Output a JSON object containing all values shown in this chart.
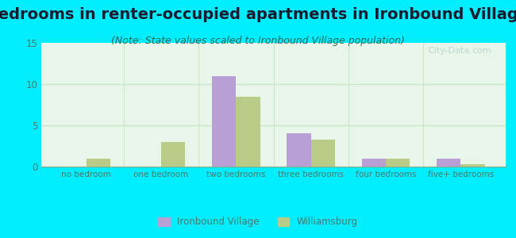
{
  "title": "Bedrooms in renter-occupied apartments in Ironbound Village",
  "subtitle": "(Note: State values scaled to Ironbound Village population)",
  "categories": [
    "no bedroom",
    "one bedroom",
    "two bedrooms",
    "three bedrooms",
    "four bedrooms",
    "five+ bedrooms"
  ],
  "ironbound_values": [
    0,
    0,
    11,
    4,
    1,
    1
  ],
  "williamsburg_values": [
    1,
    3,
    8.5,
    3.3,
    1,
    0.25
  ],
  "ironbound_color": "#b89fd4",
  "williamsburg_color": "#b8cc88",
  "background_outer": "#00eeff",
  "background_inner": "#e8f5e9",
  "ylim": [
    0,
    15
  ],
  "yticks": [
    0,
    5,
    10,
    15
  ],
  "bar_width": 0.32,
  "title_fontsize": 14,
  "subtitle_fontsize": 9,
  "title_color": "#1a1a2e",
  "subtitle_color": "#2a6a5a",
  "tick_label_color": "#4a7a6a",
  "watermark_text": "City-Data.com",
  "legend_ironbound": "Ironbound Village",
  "legend_williamsburg": "Williamsburg",
  "grid_color": "#c8e8c8",
  "axis_line_color": "#88aa88"
}
